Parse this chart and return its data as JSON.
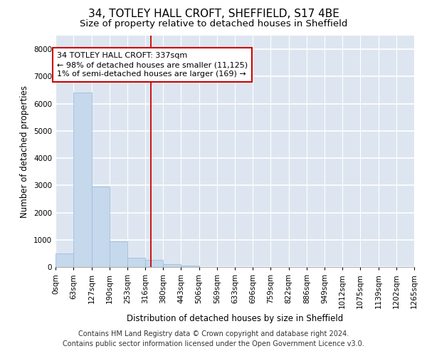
{
  "title1": "34, TOTLEY HALL CROFT, SHEFFIELD, S17 4BE",
  "title2": "Size of property relative to detached houses in Sheffield",
  "xlabel": "Distribution of detached houses by size in Sheffield",
  "ylabel": "Number of detached properties",
  "bar_color": "#c5d8ec",
  "bar_edge_color": "#a0bedc",
  "background_color": "#dde6f0",
  "annotation_text": "34 TOTLEY HALL CROFT: 337sqm\n← 98% of detached houses are smaller (11,125)\n1% of semi-detached houses are larger (169) →",
  "vline_x": 337,
  "vline_color": "#cc0000",
  "annotation_box_color": "#cc0000",
  "bins": [
    0,
    63,
    127,
    190,
    253,
    316,
    380,
    443,
    506,
    569,
    633,
    696,
    759,
    822,
    886,
    949,
    1012,
    1075,
    1139,
    1202,
    1265
  ],
  "bin_labels": [
    "0sqm",
    "63sqm",
    "127sqm",
    "190sqm",
    "253sqm",
    "316sqm",
    "380sqm",
    "443sqm",
    "506sqm",
    "569sqm",
    "633sqm",
    "696sqm",
    "759sqm",
    "822sqm",
    "886sqm",
    "949sqm",
    "1012sqm",
    "1075sqm",
    "1139sqm",
    "1202sqm",
    "1265sqm"
  ],
  "values": [
    500,
    6400,
    2950,
    950,
    330,
    270,
    100,
    50,
    0,
    0,
    0,
    0,
    0,
    0,
    0,
    0,
    0,
    0,
    0,
    0
  ],
  "ylim": [
    0,
    8500
  ],
  "yticks": [
    0,
    1000,
    2000,
    3000,
    4000,
    5000,
    6000,
    7000,
    8000
  ],
  "footer1": "Contains HM Land Registry data © Crown copyright and database right 2024.",
  "footer2": "Contains public sector information licensed under the Open Government Licence v3.0.",
  "title_fontsize": 11,
  "subtitle_fontsize": 9.5,
  "axis_label_fontsize": 8.5,
  "tick_fontsize": 7.5,
  "annotation_fontsize": 8,
  "footer_fontsize": 7
}
